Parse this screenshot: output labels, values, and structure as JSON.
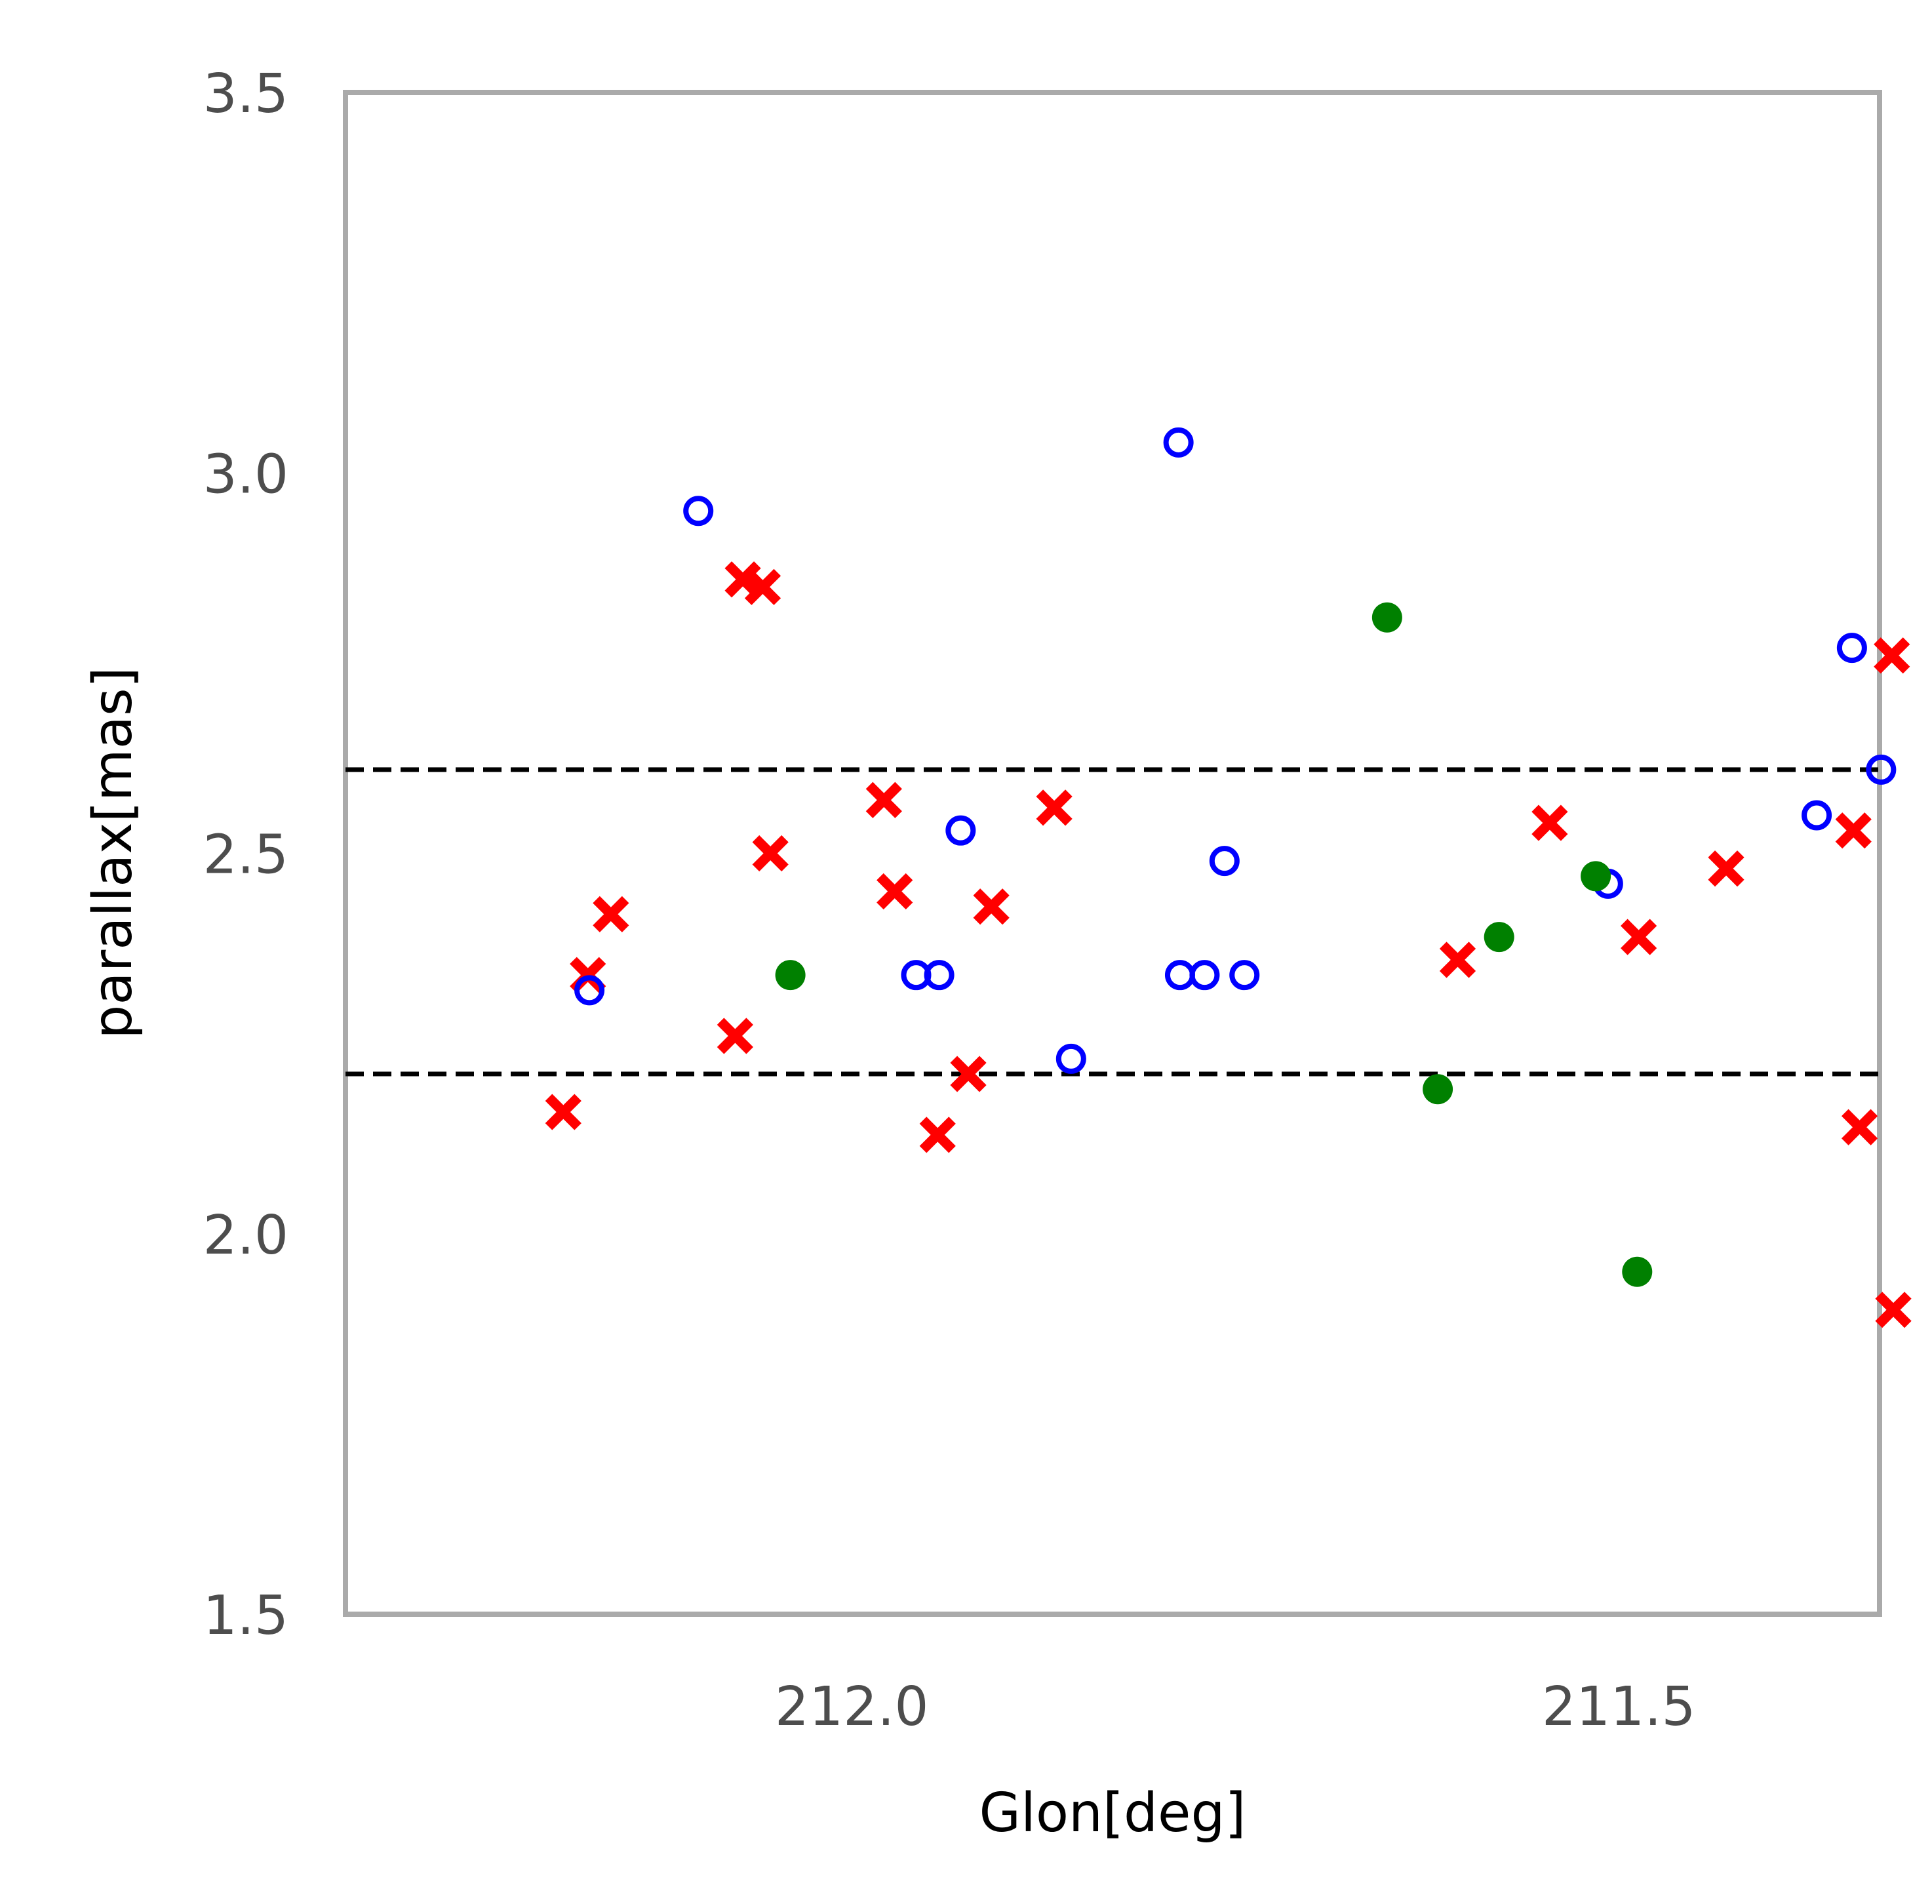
{
  "chart_data": {
    "type": "scatter",
    "xlabel": "Glon[deg]",
    "ylabel": "parallax[mas]",
    "xlim": [
      212.33,
      211.33
    ],
    "ylim": [
      1.5,
      3.5
    ],
    "x_inverted": true,
    "xticks": [
      "212.0",
      "211.5"
    ],
    "xtick_values": [
      212.0,
      211.5
    ],
    "yticks": [
      "1.5",
      "2.0",
      "2.5",
      "3.0",
      "3.5"
    ],
    "ytick_values": [
      1.5,
      2.0,
      2.5,
      3.0,
      3.5
    ],
    "grid": false,
    "hlines": [
      {
        "y": 2.61,
        "style": "dashed",
        "color": "#000000"
      },
      {
        "y": 2.21,
        "style": "dashed",
        "color": "#000000"
      }
    ],
    "series": [
      {
        "marker": "x-filled",
        "color": "#ff0000",
        "points": [
          [
            212.188,
            2.16
          ],
          [
            212.172,
            2.34
          ],
          [
            212.157,
            2.42
          ],
          [
            212.076,
            2.26
          ],
          [
            212.071,
            2.86
          ],
          [
            212.058,
            2.85
          ],
          [
            212.053,
            2.5
          ],
          [
            211.979,
            2.57
          ],
          [
            211.972,
            2.45
          ],
          [
            211.944,
            2.13
          ],
          [
            211.924,
            2.21
          ],
          [
            211.909,
            2.43
          ],
          [
            211.868,
            2.56
          ],
          [
            211.605,
            2.36
          ],
          [
            211.545,
            2.54
          ],
          [
            211.487,
            2.39
          ],
          [
            211.43,
            2.48
          ],
          [
            211.347,
            2.53
          ],
          [
            211.343,
            2.14
          ],
          [
            211.322,
            2.76
          ],
          [
            211.321,
            1.9
          ]
        ]
      },
      {
        "marker": "circle-open",
        "color": "#0000ff",
        "points": [
          [
            212.171,
            2.32
          ],
          [
            212.1,
            2.95
          ],
          [
            211.958,
            2.34
          ],
          [
            211.943,
            2.34
          ],
          [
            211.929,
            2.53
          ],
          [
            211.857,
            2.23
          ],
          [
            211.787,
            3.04
          ],
          [
            211.786,
            2.34
          ],
          [
            211.77,
            2.34
          ],
          [
            211.757,
            2.49
          ],
          [
            211.744,
            2.34
          ],
          [
            211.507,
            2.46
          ],
          [
            211.371,
            2.55
          ],
          [
            211.348,
            2.77
          ],
          [
            211.329,
            2.61
          ]
        ]
      },
      {
        "marker": "circle-filled",
        "color": "#008000",
        "points": [
          [
            212.04,
            2.34
          ],
          [
            211.651,
            2.81
          ],
          [
            211.618,
            2.19
          ],
          [
            211.578,
            2.39
          ],
          [
            211.515,
            2.47
          ],
          [
            211.488,
            1.95
          ]
        ]
      }
    ]
  }
}
